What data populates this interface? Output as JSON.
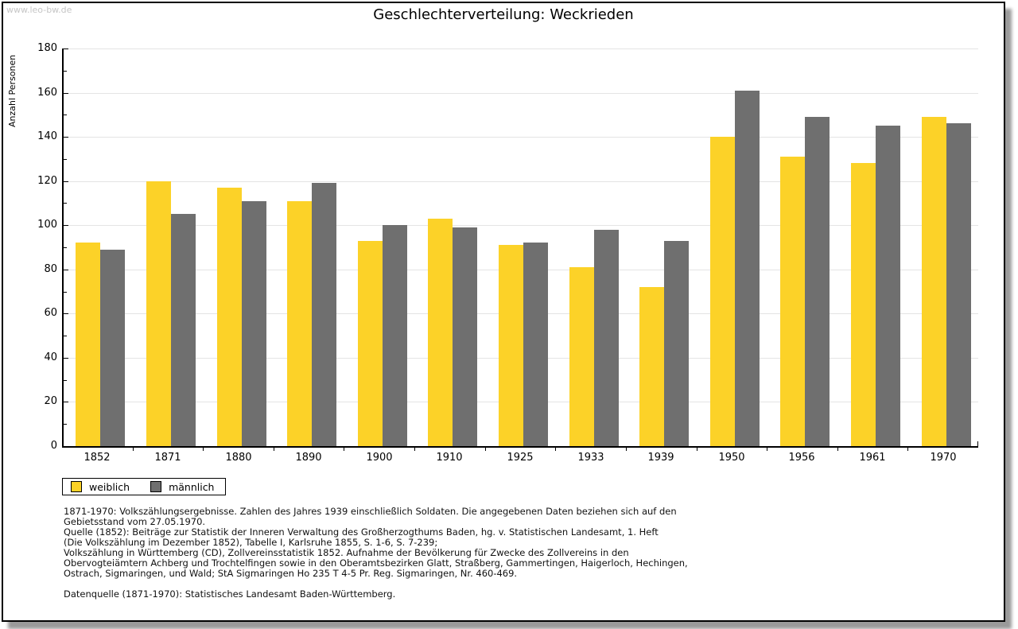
{
  "watermark": "www.leo-bw.de",
  "title": "Geschlechterverteilung: Weckrieden",
  "chart_data": {
    "type": "bar",
    "title": "Geschlechterverteilung: Weckrieden",
    "xlabel": "",
    "ylabel": "Anzahl Personen",
    "ylim": [
      0,
      180
    ],
    "ytick_step": 20,
    "ytick_minor_step": 10,
    "grid": true,
    "legend_position": "bottom-left",
    "categories": [
      "1852",
      "1871",
      "1880",
      "1890",
      "1900",
      "1910",
      "1925",
      "1933",
      "1939",
      "1950",
      "1956",
      "1961",
      "1970"
    ],
    "series": [
      {
        "name": "weiblich",
        "color": "#fcd228",
        "values": [
          92,
          120,
          117,
          111,
          93,
          103,
          91,
          81,
          72,
          140,
          131,
          128,
          149
        ]
      },
      {
        "name": "männlich",
        "color": "#6f6f6f",
        "values": [
          89,
          105,
          111,
          119,
          100,
          99,
          92,
          98,
          93,
          161,
          149,
          145,
          146
        ]
      }
    ]
  },
  "colors": {
    "weiblich": "#fcd228",
    "maennlich": "#6f6f6f",
    "gridline": "#e4e4e4",
    "watermark": "#c6c6c6"
  },
  "footnote": {
    "lines": [
      "1871-1970: Volkszählungsergebnisse. Zahlen des Jahres 1939 einschließlich Soldaten. Die angegebenen Daten beziehen sich auf den",
      "Gebietsstand vom 27.05.1970.",
      "Quelle (1852): Beiträge zur Statistik der Inneren Verwaltung des Großherzogthums Baden, hg. v. Statistischen Landesamt, 1. Heft",
      "(Die Volkszählung im Dezember 1852), Tabelle I, Karlsruhe 1855, S. 1-6, S. 7-239;",
      "Volkszählung in Württemberg (CD), Zollvereinsstatistik 1852. Aufnahme der Bevölkerung für Zwecke des Zollvereins in den",
      "Obervogteiämtern Achberg und Trochtelfingen sowie in den Oberamtsbezirken Glatt, Straßberg, Gammertingen, Haigerloch, Hechingen,",
      "Ostrach, Sigmaringen, und Wald; StA Sigmaringen Ho 235 T 4-5 Pr. Reg. Sigmaringen, Nr. 460-469."
    ],
    "datasource": "Datenquelle (1871-1970): Statistisches Landesamt Baden-Württemberg."
  }
}
